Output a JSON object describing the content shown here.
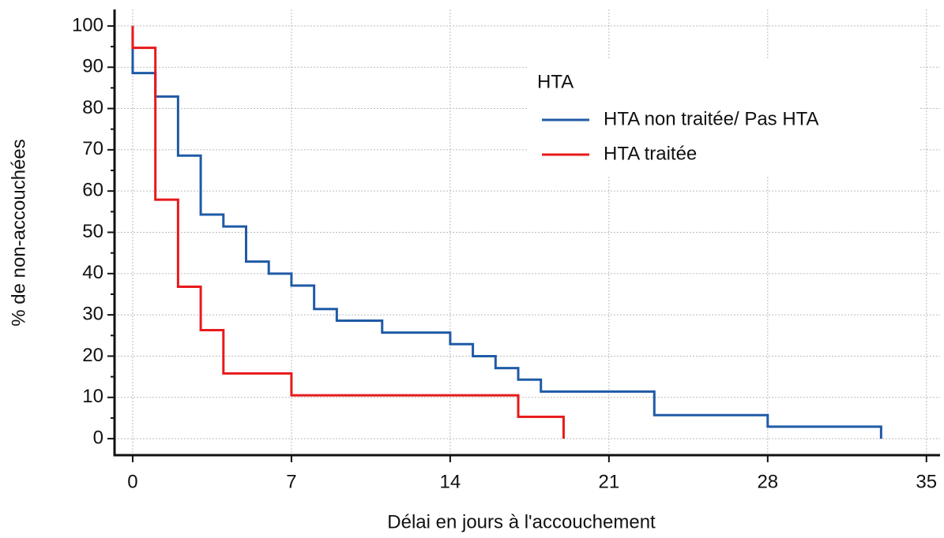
{
  "chart_data": {
    "type": "step",
    "x_label": "Délai en jours à l'accouchement",
    "y_label": "% de non-accouchées",
    "legend_title": "HTA",
    "legend": "upper right",
    "grid": true,
    "xlim": [
      -0.8,
      35.6
    ],
    "xticks": [
      0,
      7,
      14,
      21,
      28,
      35
    ],
    "ylim": [
      -4,
      104
    ],
    "yticks": [
      0,
      10,
      20,
      30,
      40,
      50,
      60,
      70,
      80,
      90,
      100
    ],
    "series": [
      {
        "name": "HTA non traitée/ Pas HTA",
        "color": "#1f5aa6",
        "x": [
          0,
          0,
          1,
          2,
          3,
          4,
          5,
          6,
          7,
          8,
          9,
          11,
          14,
          15,
          16,
          17,
          18,
          23,
          28,
          33
        ],
        "values": [
          100,
          88.6,
          82.9,
          68.6,
          54.3,
          51.4,
          42.9,
          40,
          37.1,
          31.4,
          28.6,
          25.7,
          22.9,
          20,
          17.1,
          14.3,
          11.4,
          5.7,
          2.9,
          0
        ]
      },
      {
        "name": "HTA traitée",
        "color": "#e8191b",
        "x": [
          0,
          0,
          1,
          2,
          3,
          4,
          7,
          17,
          19
        ],
        "values": [
          100,
          94.7,
          57.9,
          36.8,
          26.3,
          15.8,
          10.5,
          5.3,
          0
        ]
      }
    ]
  }
}
